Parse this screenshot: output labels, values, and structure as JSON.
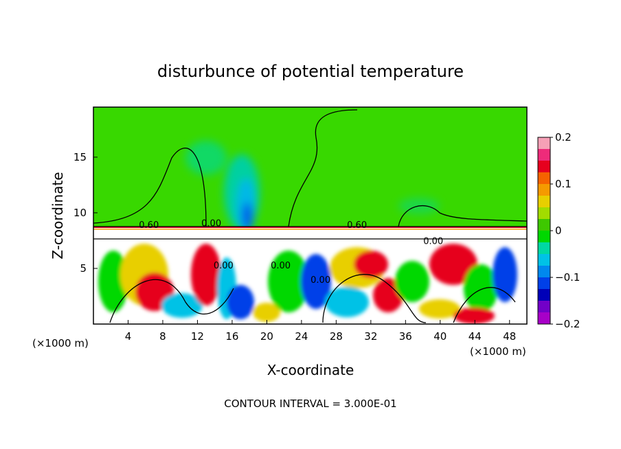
{
  "chart_data": {
    "type": "heatmap",
    "title": "disturbunce of potential temperature",
    "xlabel": "X-coordinate",
    "ylabel": "Z-coordinate",
    "x_unit": "(×1000 m)",
    "x_ticks": [
      4,
      8,
      12,
      16,
      20,
      24,
      28,
      32,
      36,
      40,
      44,
      48
    ],
    "y_ticks": [
      5,
      10,
      15
    ],
    "xlim": [
      0,
      50
    ],
    "ylim": [
      0,
      19.5
    ],
    "colorbar": {
      "range": [
        -0.2,
        0.2
      ],
      "tick_values": [
        0.2,
        0.1,
        0,
        -0.1,
        -0.2
      ],
      "tick_labels": [
        "0.2",
        "0.1",
        "0",
        "−0.1",
        "−0.2"
      ],
      "colors": [
        "#f6a0b6",
        "#ee2b7a",
        "#e6001e",
        "#f56300",
        "#f59a00",
        "#e8cf00",
        "#a2dc00",
        "#3ec800",
        "#00d800",
        "#00d8a2",
        "#00c2e6",
        "#0088ee",
        "#0040e8",
        "#0000b8",
        "#7200c8",
        "#a800c8"
      ]
    },
    "contour_labels": [
      {
        "text": "0.60",
        "x": 6.4,
        "z": 8.95
      },
      {
        "text": "0.00",
        "x": 13.6,
        "z": 9.1
      },
      {
        "text": "0.60",
        "x": 30.4,
        "z": 8.95
      },
      {
        "text": "0.00",
        "x": 39.2,
        "z": 7.5
      },
      {
        "text": "0.00",
        "x": 15.0,
        "z": 5.3
      },
      {
        "text": "0.00",
        "x": 21.6,
        "z": 5.3
      },
      {
        "text": "0.00",
        "x": 26.2,
        "z": 4.0
      }
    ],
    "footer": "CONTOUR INTERVAL = 3.000E-01"
  }
}
